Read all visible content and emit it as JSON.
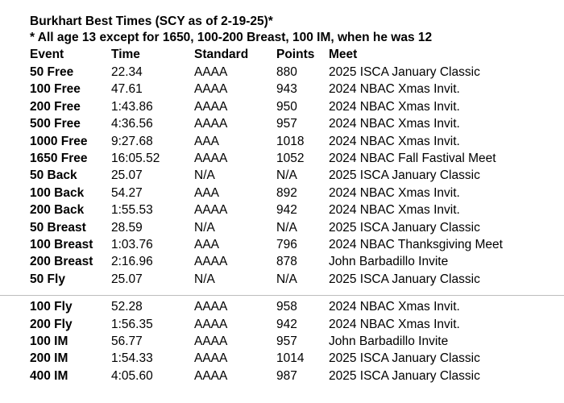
{
  "header": {
    "title": "Burkhart Best Times (SCY as of 2-19-25)*",
    "note": "* All age 13 except for 1650, 100-200 Breast, 100 IM, when he was 12"
  },
  "table": {
    "columns": [
      "Event",
      "Time",
      "Standard",
      "Points",
      "Meet"
    ],
    "rows": [
      [
        "50 Free",
        "22.34",
        "AAAA",
        "880",
        "2025 ISCA January Classic"
      ],
      [
        "100 Free",
        "47.61",
        "AAAA",
        "943",
        "2024 NBAC Xmas Invit."
      ],
      [
        "200 Free",
        "1:43.86",
        "AAAA",
        "950",
        "2024 NBAC Xmas Invit."
      ],
      [
        "500 Free",
        "4:36.56",
        "AAAA",
        "957",
        "2024 NBAC Xmas Invit."
      ],
      [
        "1000 Free",
        "9:27.68",
        "AAA",
        "1018",
        "2024 NBAC Xmas Invit."
      ],
      [
        "1650 Free",
        "16:05.52",
        "AAAA",
        "1052",
        "2024 NBAC Fall Fastival Meet"
      ],
      [
        "50 Back",
        "25.07",
        "N/A",
        "N/A",
        "2025 ISCA January Classic"
      ],
      [
        "100 Back",
        "54.27",
        "AAA",
        "892",
        "2024 NBAC Xmas Invit."
      ],
      [
        "200 Back",
        "1:55.53",
        "AAAA",
        "942",
        "2024 NBAC Xmas Invit."
      ],
      [
        "50 Breast",
        "28.59",
        "N/A",
        "N/A",
        "2025 ISCA January Classic"
      ],
      [
        "100 Breast",
        "1:03.76",
        "AAA",
        "796",
        "2024 NBAC Thanksgiving Meet"
      ],
      [
        "200 Breast",
        "2:16.96",
        "AAAA",
        "878",
        "John Barbadillo Invite"
      ],
      [
        "50 Fly",
        "25.07",
        "N/A",
        "N/A",
        "2025 ISCA January Classic"
      ],
      [
        "100 Fly",
        "52.28",
        "AAAA",
        "958",
        "2024 NBAC Xmas Invit."
      ],
      [
        "200 Fly",
        "1:56.35",
        "AAAA",
        "942",
        "2024 NBAC Xmas Invit."
      ],
      [
        "100 IM",
        "56.77",
        "AAAA",
        "957",
        "John Barbadillo Invite"
      ],
      [
        "200 IM",
        "1:54.33",
        "AAAA",
        "1014",
        "2025 ISCA January Classic"
      ],
      [
        "400 IM",
        "4:05.60",
        "AAAA",
        "987",
        "2025 ISCA January Classic"
      ]
    ]
  }
}
